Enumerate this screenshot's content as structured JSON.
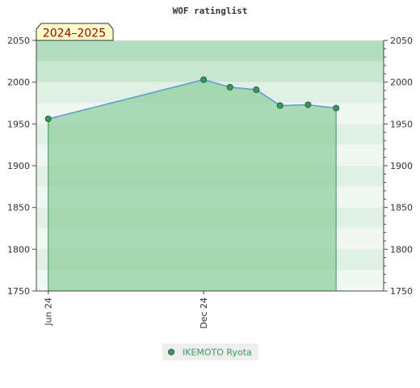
{
  "title": "WOF ratinglist",
  "season_badge": "2024–2025",
  "legend": {
    "series_name": "IKEMOTO Ryota",
    "marker_color": "#3a9a5a"
  },
  "colors": {
    "band_light": "#e0f0e4",
    "band_mid": "#c8e6d0",
    "band_dark": "#b3ddbf",
    "band_highlight": "#f1f8f3",
    "area_fill": "#7cc48e",
    "area_edge": "#2e9a50",
    "line": "#5b9bd5",
    "marker": "#3a9a5a",
    "badge_fill": "#ffffcc",
    "badge_text": "#990000"
  },
  "chart_data": {
    "type": "area",
    "title": "WOF ratinglist",
    "xlabel": "",
    "ylabel": "",
    "ylim": [
      1750,
      2050
    ],
    "y_ticks": [
      1750,
      1800,
      1850,
      1900,
      1950,
      2000,
      2050
    ],
    "x_tick_labels": [
      {
        "label": "Jun 24",
        "date": "2024-06-01"
      },
      {
        "label": "Dec 24",
        "date": "2024-12-01"
      }
    ],
    "x_range": [
      "2024-05-18",
      "2025-07-01"
    ],
    "legend_position": "bottom-center",
    "grid": false,
    "series": [
      {
        "name": "IKEMOTO Ryota",
        "points": [
          {
            "x": "2024-06-01",
            "y": 1956
          },
          {
            "x": "2024-12-01",
            "y": 2003
          },
          {
            "x": "2025-01-01",
            "y": 1994
          },
          {
            "x": "2025-02-01",
            "y": 1991
          },
          {
            "x": "2025-03-01",
            "y": 1972
          },
          {
            "x": "2025-04-03",
            "y": 1973
          },
          {
            "x": "2025-05-06",
            "y": 1969
          }
        ]
      }
    ]
  }
}
